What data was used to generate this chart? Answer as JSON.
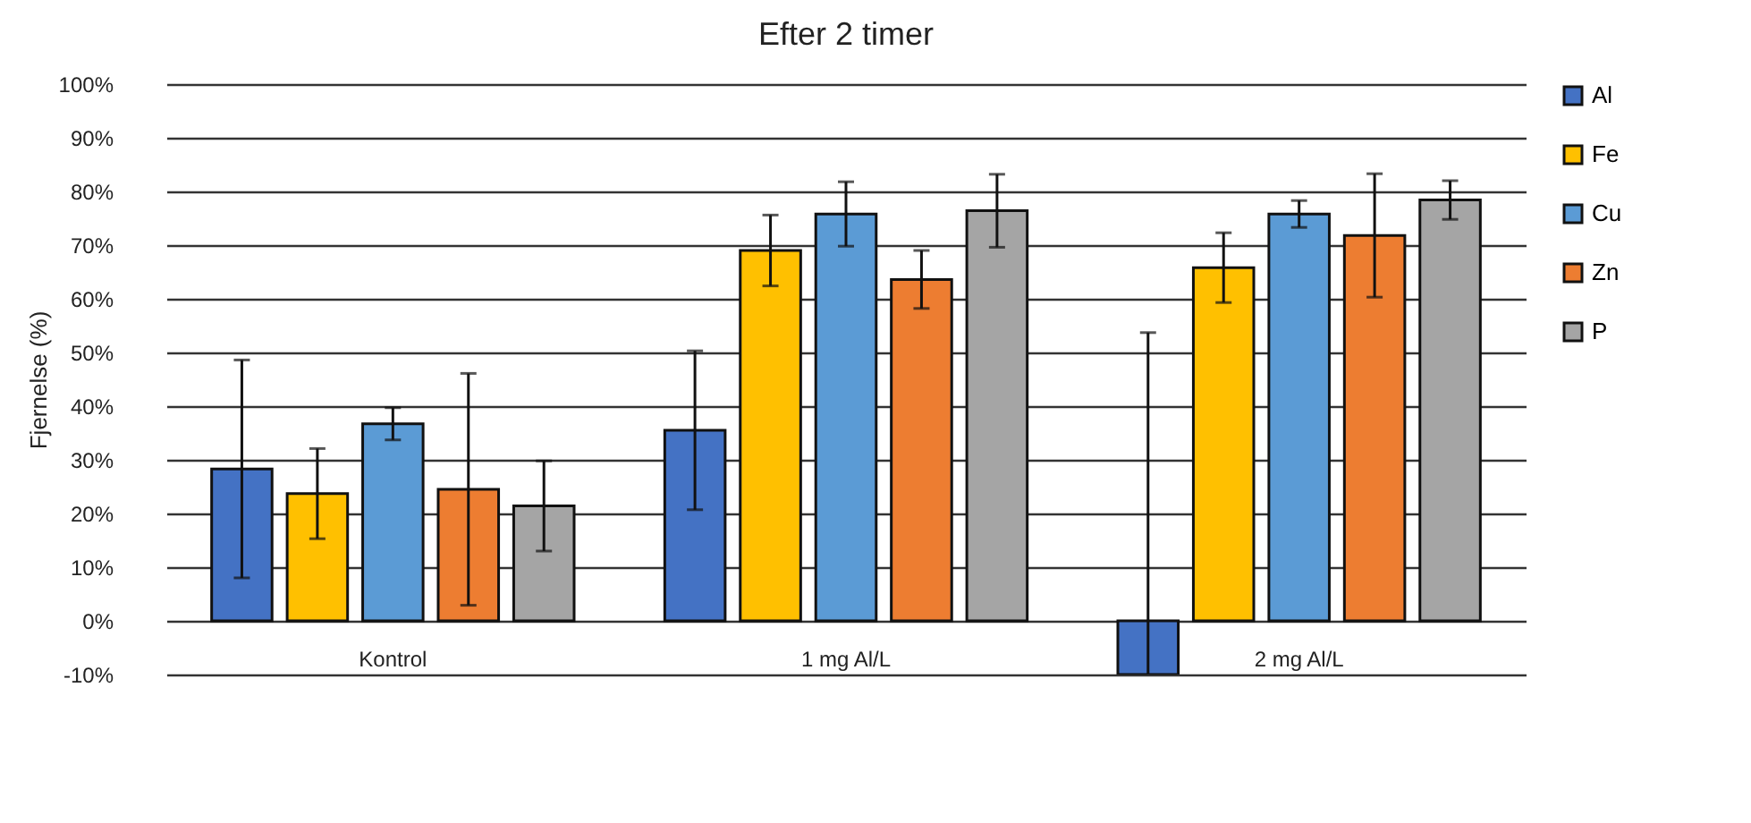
{
  "chart_data": {
    "type": "bar",
    "title": "Efter 2 timer",
    "ylabel": "Fjernelse (%)",
    "categories": [
      "Kontrol",
      "1 mg Al/L",
      "2 mg Al/L"
    ],
    "series": [
      {
        "name": "Al",
        "color": "#4472c4",
        "values": [
          28.3,
          35.5,
          -10
        ],
        "errors": [
          20.3,
          14.8,
          [
            -10,
            53.7
          ]
        ]
      },
      {
        "name": "Fe",
        "color": "#ffc000",
        "values": [
          23.7,
          69.0,
          65.8
        ],
        "errors": [
          8.4,
          6.6,
          6.5
        ]
      },
      {
        "name": "Cu",
        "color": "#5b9bd5",
        "values": [
          36.7,
          75.8,
          75.8
        ],
        "errors": [
          3,
          6,
          2.5
        ]
      },
      {
        "name": "Zn",
        "color": "#ed7d31",
        "values": [
          24.5,
          63.6,
          71.8
        ],
        "errors": [
          21.6,
          5.4,
          11.5
        ]
      },
      {
        "name": "P",
        "color": "#a5a5a5",
        "values": [
          21.4,
          76.4,
          78.4
        ],
        "errors": [
          8.4,
          6.8,
          3.6
        ]
      }
    ],
    "ylim": [
      -10,
      100
    ],
    "yticks": [
      {
        "value": -10,
        "label": "-10%"
      },
      {
        "value": 0,
        "label": "0%"
      },
      {
        "value": 10,
        "label": "10%"
      },
      {
        "value": 20,
        "label": "20%"
      },
      {
        "value": 30,
        "label": "30%"
      },
      {
        "value": 40,
        "label": "40%"
      },
      {
        "value": 50,
        "label": "50%"
      },
      {
        "value": 60,
        "label": "60%"
      },
      {
        "value": 70,
        "label": "70%"
      },
      {
        "value": 80,
        "label": "80%"
      },
      {
        "value": 90,
        "label": "90%"
      },
      {
        "value": 100,
        "label": "100%"
      }
    ],
    "grid": "y",
    "legend": "right"
  }
}
